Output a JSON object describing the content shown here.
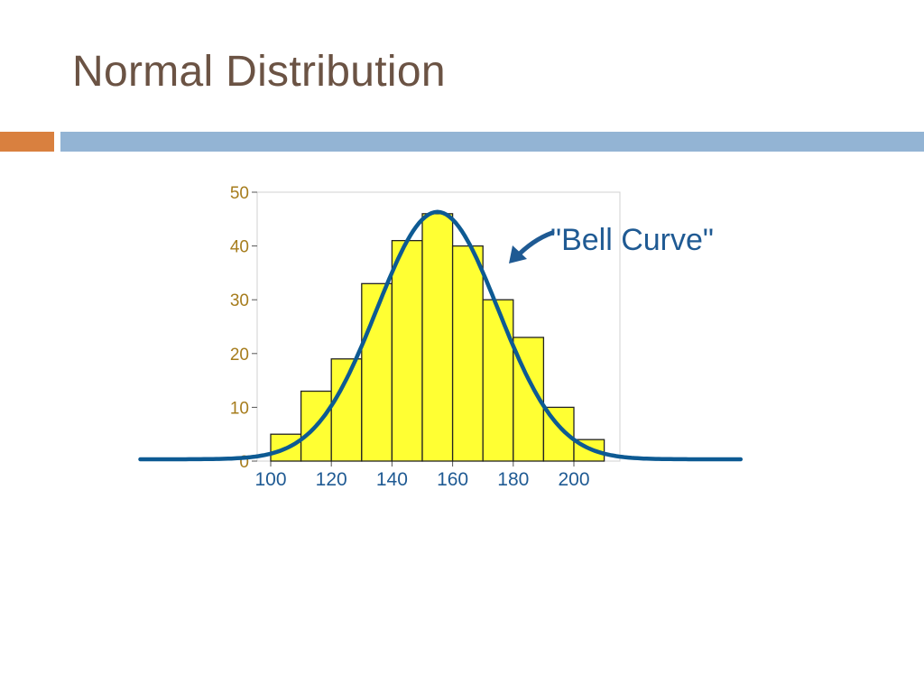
{
  "slide": {
    "title": "Normal Distribution"
  },
  "colors": {
    "title": "#6b5344",
    "accent_orange": "#d9803f",
    "accent_blue": "#93b4d4",
    "bar_fill": "#ffff33",
    "bar_stroke": "#222222",
    "curve": "#0d5a93",
    "y_ticks": "#a67c1c",
    "x_ticks": "#1f5a93"
  },
  "chart_data": {
    "type": "bar",
    "title": "",
    "xlabel": "",
    "ylabel": "",
    "bin_width": 10,
    "bins": [
      {
        "start": 100,
        "value": 5
      },
      {
        "start": 110,
        "value": 13
      },
      {
        "start": 120,
        "value": 19
      },
      {
        "start": 130,
        "value": 33
      },
      {
        "start": 140,
        "value": 41
      },
      {
        "start": 150,
        "value": 46
      },
      {
        "start": 160,
        "value": 40
      },
      {
        "start": 170,
        "value": 30
      },
      {
        "start": 180,
        "value": 23
      },
      {
        "start": 190,
        "value": 10
      },
      {
        "start": 200,
        "value": 4
      }
    ],
    "x_ticks": [
      "100",
      "120",
      "140",
      "160",
      "180",
      "200"
    ],
    "y_ticks": [
      "0",
      "10",
      "20",
      "30",
      "40",
      "50"
    ],
    "ylim": [
      0,
      50
    ],
    "xlim": [
      100,
      210
    ],
    "grid": false,
    "curve": {
      "type": "normal",
      "mean": 155,
      "std_dev": 20,
      "peak": 46
    },
    "annotation": "\"Bell Curve\""
  }
}
